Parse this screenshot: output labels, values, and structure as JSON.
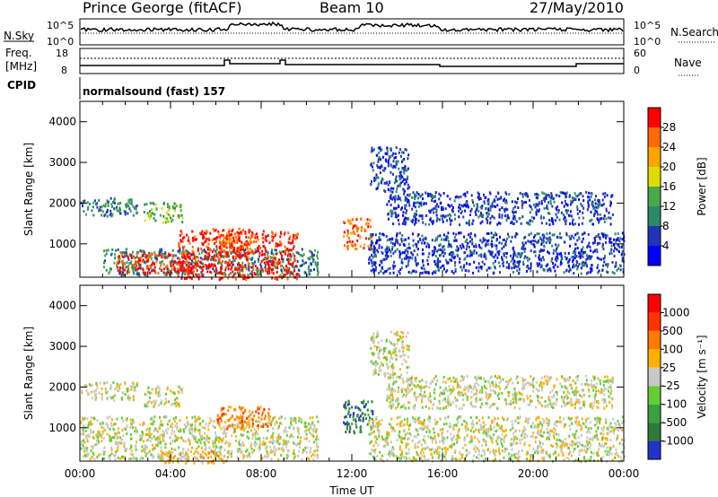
{
  "header": {
    "station": "Prince George (fitACF)",
    "beam": "Beam 10",
    "date": "27/May/2010"
  },
  "strips": {
    "nsky_label": "N.Sky",
    "nsky_ticks": [
      "10^5",
      "10^0"
    ],
    "nsearch_label": "N.Search",
    "nsearch_ticks": [
      "10^5",
      "10^0"
    ],
    "freq_label_1": "Freq.",
    "freq_label_2": "[MHz]",
    "freq_ticks": [
      "18",
      "8"
    ],
    "nave_label": "Nave",
    "nave_ticks": [
      "60",
      "0"
    ],
    "cpid_label": "CPID",
    "cpid_text": "normalsound (fast) 157"
  },
  "chart_data": [
    {
      "type": "heatmap",
      "name": "power",
      "ylabel": "Slant Range [km]",
      "xlabel": "",
      "yticks": [
        "1000",
        "2000",
        "3000",
        "4000"
      ],
      "ylim": [
        180,
        4500
      ],
      "xlim": [
        0,
        24
      ],
      "colorbar": {
        "label": "Power [dB]",
        "ticks": [
          "4",
          "8",
          "12",
          "16",
          "20",
          "24",
          "28"
        ],
        "colors": [
          "#0000ff",
          "#2233bb",
          "#2a8a6a",
          "#49a84a",
          "#dddd00",
          "#ffa500",
          "#ff6a00",
          "#ff0000"
        ]
      },
      "regions": [
        {
          "t0": 0.0,
          "t1": 2.5,
          "r0": 1700,
          "r1": 2150,
          "level": 2
        },
        {
          "t0": 2.8,
          "t1": 4.5,
          "r0": 1550,
          "r1": 2050,
          "level": 3
        },
        {
          "t0": 1.0,
          "t1": 10.5,
          "r0": 250,
          "r1": 900,
          "level": 2
        },
        {
          "t0": 1.6,
          "t1": 5.2,
          "r0": 300,
          "r1": 800,
          "level": 7
        },
        {
          "t0": 4.3,
          "t1": 9.6,
          "r0": 150,
          "r1": 1350,
          "level": 7
        },
        {
          "t0": 5.8,
          "t1": 7.6,
          "r0": 700,
          "r1": 1400,
          "level": 6
        },
        {
          "t0": 11.6,
          "t1": 12.9,
          "r0": 900,
          "r1": 1650,
          "level": 6
        },
        {
          "t0": 12.7,
          "t1": 24.0,
          "r0": 300,
          "r1": 1300,
          "level": 1
        },
        {
          "t0": 13.5,
          "t1": 23.5,
          "r0": 1500,
          "r1": 2300,
          "level": 1
        },
        {
          "t0": 12.8,
          "t1": 14.5,
          "r0": 2300,
          "r1": 3400,
          "level": 1
        }
      ]
    },
    {
      "type": "heatmap",
      "name": "velocity",
      "ylabel": "Slant Range [km]",
      "xlabel": "Time UT",
      "yticks": [
        "1000",
        "2000",
        "3000",
        "4000"
      ],
      "xticks": [
        "00:00",
        "04:00",
        "08:00",
        "12:00",
        "16:00",
        "20:00",
        "00:00"
      ],
      "ylim": [
        180,
        4500
      ],
      "xlim": [
        0,
        24
      ],
      "colorbar": {
        "label": "Velocity [m s⁻¹]",
        "ticks": [
          "1000",
          "500",
          "100",
          "25",
          "-25",
          "-100",
          "-500",
          "-1000"
        ],
        "colors": [
          "#2233cc",
          "#2d7a3a",
          "#3aa040",
          "#66cc33",
          "#c8c8c8",
          "#ffb000",
          "#ff7a00",
          "#ff3300",
          "#ff0000"
        ]
      },
      "regions": [
        {
          "t0": 0.0,
          "t1": 10.5,
          "r0": 250,
          "r1": 1300,
          "level": 4
        },
        {
          "t0": 0.0,
          "t1": 2.5,
          "r0": 1700,
          "r1": 2150,
          "level": 4
        },
        {
          "t0": 2.8,
          "t1": 4.5,
          "r0": 1550,
          "r1": 2050,
          "level": 4
        },
        {
          "t0": 6.0,
          "t1": 8.5,
          "r0": 1000,
          "r1": 1550,
          "level": 6
        },
        {
          "t0": 11.6,
          "t1": 12.9,
          "r0": 900,
          "r1": 1700,
          "level": 1
        },
        {
          "t0": 3.5,
          "t1": 6.5,
          "r0": 150,
          "r1": 450,
          "level": 5
        },
        {
          "t0": 12.7,
          "t1": 24.0,
          "r0": 200,
          "r1": 1300,
          "level": 4
        },
        {
          "t0": 13.5,
          "t1": 23.5,
          "r0": 1500,
          "r1": 2300,
          "level": 4
        },
        {
          "t0": 12.8,
          "t1": 14.5,
          "r0": 2300,
          "r1": 3400,
          "level": 4
        }
      ]
    }
  ]
}
